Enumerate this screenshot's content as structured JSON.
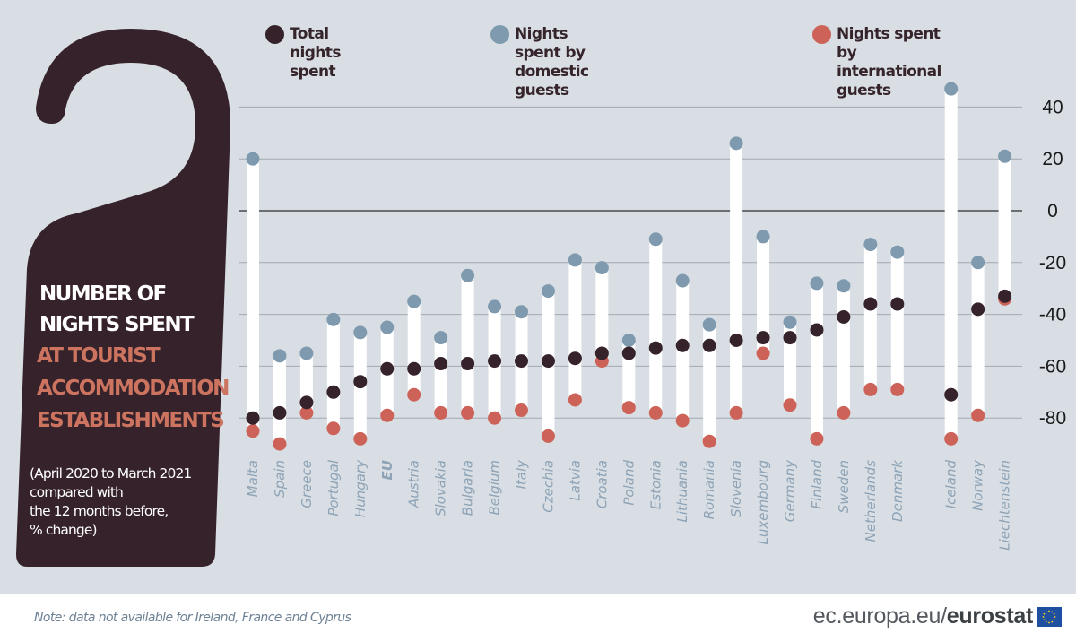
{
  "title": {
    "line1": "NUMBER OF",
    "line2": "NIGHTS SPENT",
    "accent1": "AT TOURIST",
    "accent2": "ACCOMMODATION",
    "accent3": "ESTABLISHMENTS",
    "subtitle": "(April 2020 to March 2021\ncompared with\nthe 12 months before,\n% change)"
  },
  "footer": {
    "note": "Note: data not available for Ireland, France and Cyprus",
    "brand_prefix": "ec.europa.eu/",
    "brand_bold": "eurostat"
  },
  "colors": {
    "background": "#d8dee4",
    "hanger": "#35222a",
    "total": "#35222a",
    "domestic": "#7f9aae",
    "international": "#cd6358",
    "accent_text": "#cd7460",
    "category_label": "#8ea3b6"
  },
  "chart_data": {
    "type": "dot-range",
    "title": "Number of nights spent at tourist accommodation establishments",
    "subtitle": "(April 2020 to March 2021 compared with the 12 months before, % change)",
    "xlabel": "",
    "ylabel": "% change",
    "ylim": [
      -90,
      50
    ],
    "yticks": [
      40,
      20,
      0,
      -20,
      -40,
      -60,
      -80
    ],
    "grid": true,
    "y_axis_side": "right",
    "legend_position": "top",
    "legend": [
      {
        "key": "total",
        "label": "Total nights spent"
      },
      {
        "key": "domestic",
        "label": "Nights spent by domestic guests"
      },
      {
        "key": "international",
        "label": "Nights spent by\ninternational guests"
      }
    ],
    "categories": [
      "Malta",
      "Spain",
      "Greece",
      "Portugal",
      "Hungary",
      "EU",
      "Austria",
      "Slovakia",
      "Bulgaria",
      "Belgium",
      "Italy",
      "Czechia",
      "Latvia",
      "Croatia",
      "Poland",
      "Estonia",
      "Lithuania",
      "Romania",
      "Slovenia",
      "Luxembourg",
      "Germany",
      "Finland",
      "Sweden",
      "Netherlands",
      "Denmark",
      "",
      "Iceland",
      "Norway",
      "Liechtenstein"
    ],
    "bold_categories": [
      "EU"
    ],
    "series": [
      {
        "name": "Total nights spent",
        "key": "total",
        "values": [
          -80,
          -78,
          -74,
          -70,
          -66,
          -61,
          -61,
          -59,
          -59,
          -58,
          -58,
          -58,
          -57,
          -55,
          -55,
          -53,
          -52,
          -52,
          -50,
          -49,
          -49,
          -46,
          -41,
          -36,
          -36,
          null,
          -71,
          -38,
          -33
        ]
      },
      {
        "name": "Nights spent by domestic guests",
        "key": "domestic",
        "values": [
          20,
          -56,
          -55,
          -42,
          -47,
          -45,
          -35,
          -49,
          -25,
          -37,
          -39,
          -31,
          -19,
          -22,
          -50,
          -11,
          -27,
          -44,
          26,
          -10,
          -43,
          -28,
          -29,
          -13,
          -16,
          null,
          47,
          -20,
          21
        ]
      },
      {
        "name": "Nights spent by international guests",
        "key": "international",
        "values": [
          -85,
          -90,
          -78,
          -84,
          -88,
          -79,
          -71,
          -78,
          -78,
          -80,
          -77,
          -87,
          -73,
          -58,
          -76,
          -78,
          -81,
          -89,
          -78,
          -55,
          -75,
          -88,
          -78,
          -69,
          -69,
          null,
          -88,
          -79,
          -34
        ]
      }
    ]
  }
}
